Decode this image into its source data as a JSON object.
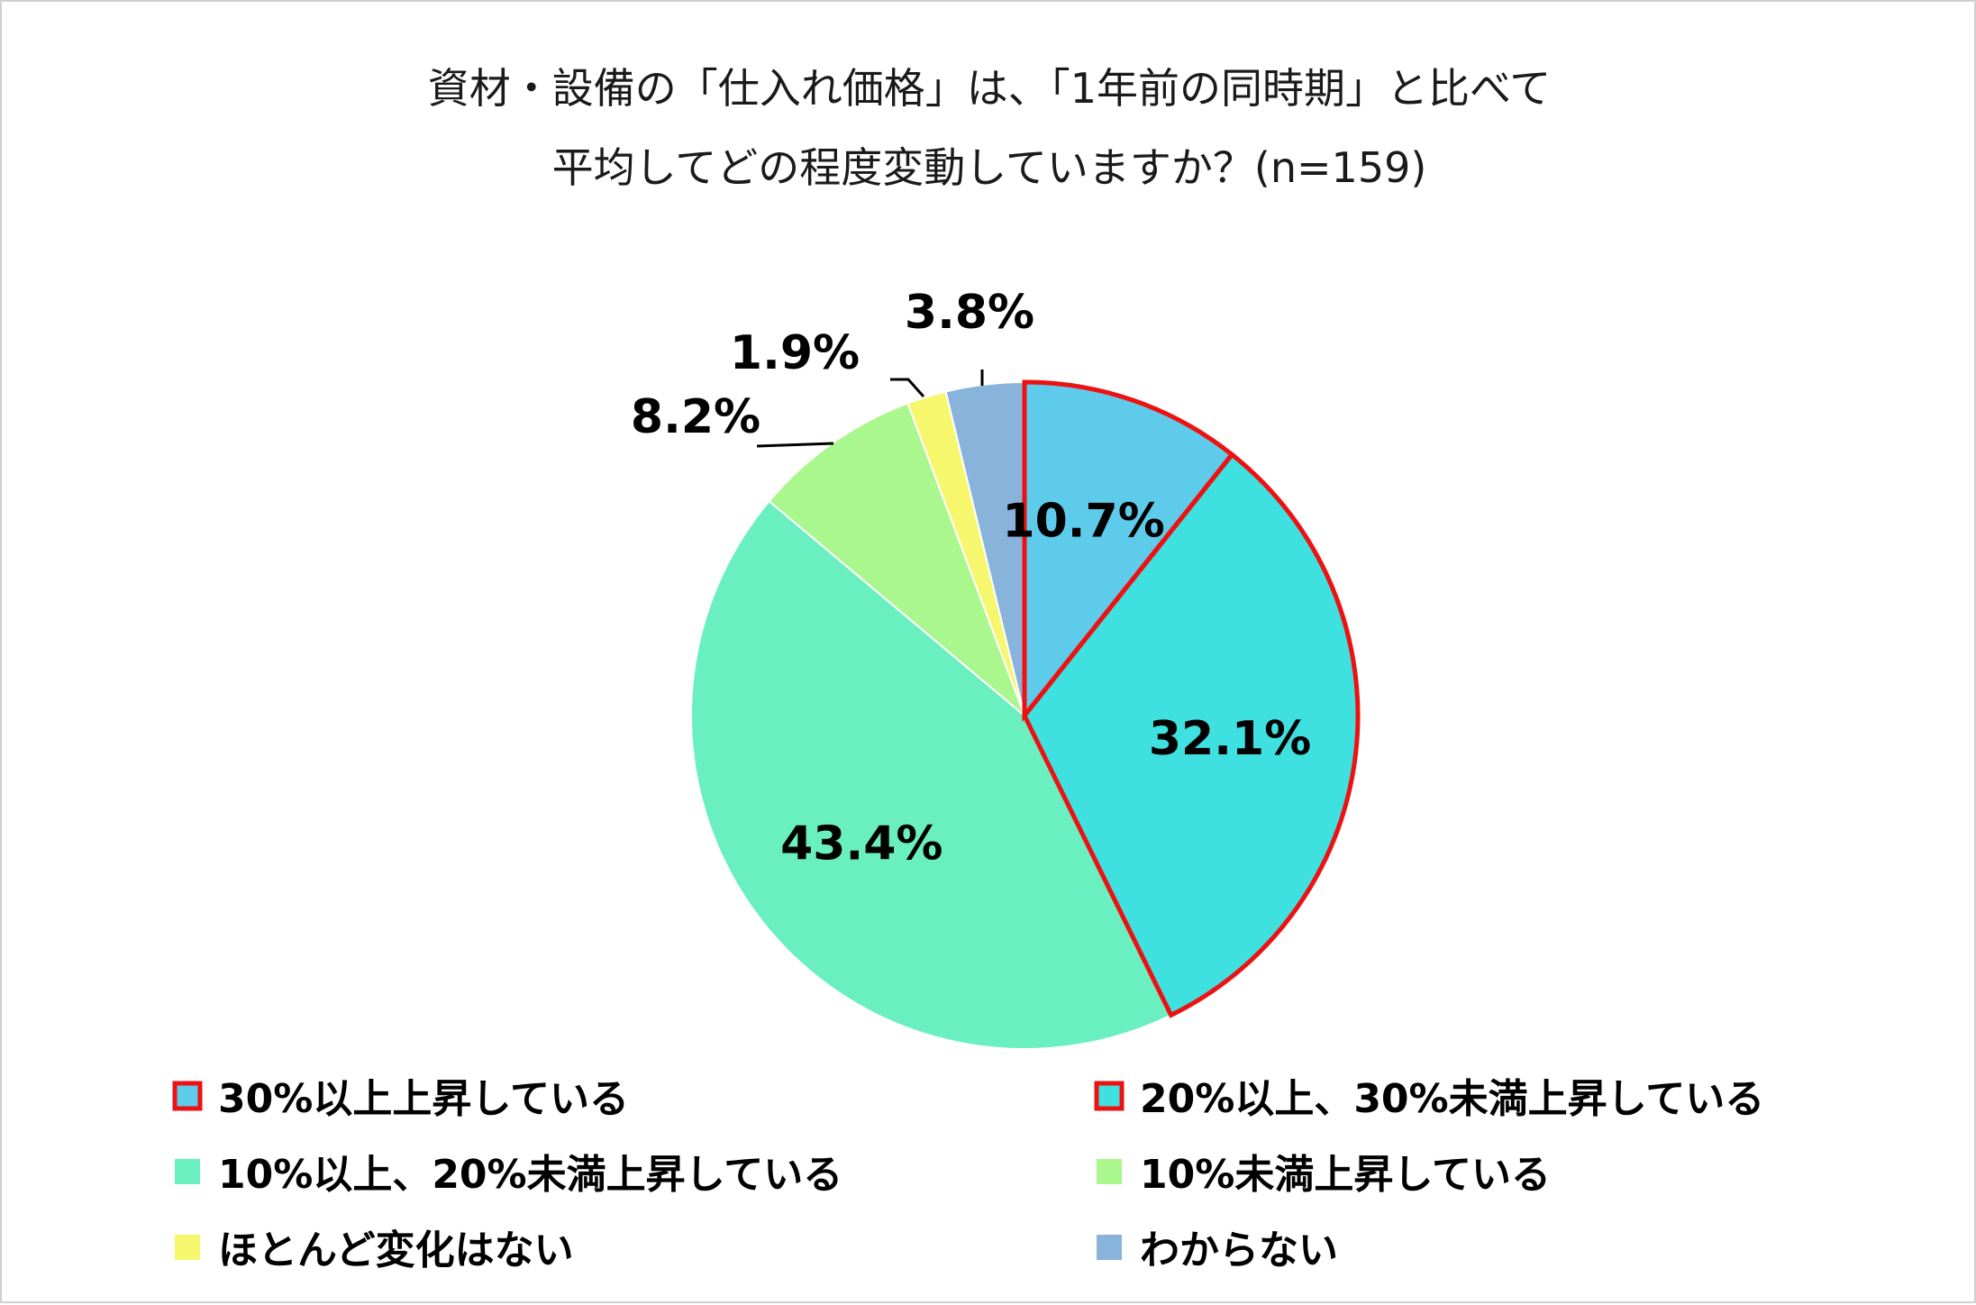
{
  "chart_data": {
    "type": "pie",
    "title": [
      "資材・設備の「仕入れ価格」は、「1年前の同時期」と比べて",
      "平均してどの程度変動していますか？(n=159)"
    ],
    "start_angle_deg": 0,
    "direction": "clockwise",
    "slices": [
      {
        "name": "30%以上上昇している",
        "value": 10.7,
        "label": "10.7%",
        "color": "#5ECBEA",
        "highlight": true
      },
      {
        "name": "20%以上、30%未満上昇している",
        "value": 32.1,
        "label": "32.1%",
        "color": "#3EE0E0",
        "highlight": true
      },
      {
        "name": "10%以上、20%未満上昇している",
        "value": 43.4,
        "label": "43.4%",
        "color": "#6AF0C0",
        "highlight": false
      },
      {
        "name": "10%未満上昇している",
        "value": 8.2,
        "label": "8.2%",
        "color": "#AAF78E",
        "highlight": false
      },
      {
        "name": "ほとんど変化はない",
        "value": 1.9,
        "label": "1.9%",
        "color": "#F7F76E",
        "highlight": false
      },
      {
        "name": "わからない",
        "value": 3.8,
        "label": "3.8%",
        "color": "#88B4DC",
        "highlight": false
      }
    ],
    "highlight_color": "#EE1111",
    "legend_position": "bottom"
  }
}
